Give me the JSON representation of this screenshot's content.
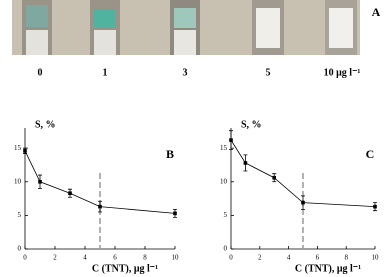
{
  "panel_a": {
    "label": "A",
    "strip_labels": [
      "0",
      "1",
      "3",
      "5",
      "10 μg l⁻¹"
    ]
  },
  "chart_data": [
    {
      "type": "line",
      "panel": "B",
      "ylabel": "S, %",
      "xlabel": "C (TNT), μg l⁻¹",
      "x": [
        0,
        1,
        3,
        5,
        10
      ],
      "values": [
        14.6,
        10.0,
        8.3,
        6.3,
        5.3
      ],
      "errors": [
        0.4,
        1.0,
        0.6,
        0.8,
        0.6
      ],
      "color": "#000000",
      "xlim": [
        0,
        10
      ],
      "xticks": [
        0,
        2,
        4,
        6,
        8,
        10
      ],
      "ylim": [
        0,
        18
      ],
      "yticks": [
        0,
        5,
        10,
        15
      ],
      "vline": 5,
      "vline_color": "#999999"
    },
    {
      "type": "line",
      "panel": "C",
      "ylabel": "S, %",
      "xlabel": "C (TNT), μg l⁻¹",
      "x": [
        0,
        1,
        3,
        5,
        10
      ],
      "values": [
        16.2,
        12.8,
        10.6,
        6.9,
        6.3
      ],
      "errors": [
        1.4,
        1.2,
        0.6,
        1.0,
        0.6
      ],
      "color": "#000000",
      "xlim": [
        0,
        10
      ],
      "xticks": [
        0,
        2,
        4,
        6,
        8,
        10
      ],
      "ylim": [
        0,
        18
      ],
      "yticks": [
        0,
        5,
        10,
        15
      ],
      "vline": 5,
      "vline_color": "#999999"
    }
  ]
}
